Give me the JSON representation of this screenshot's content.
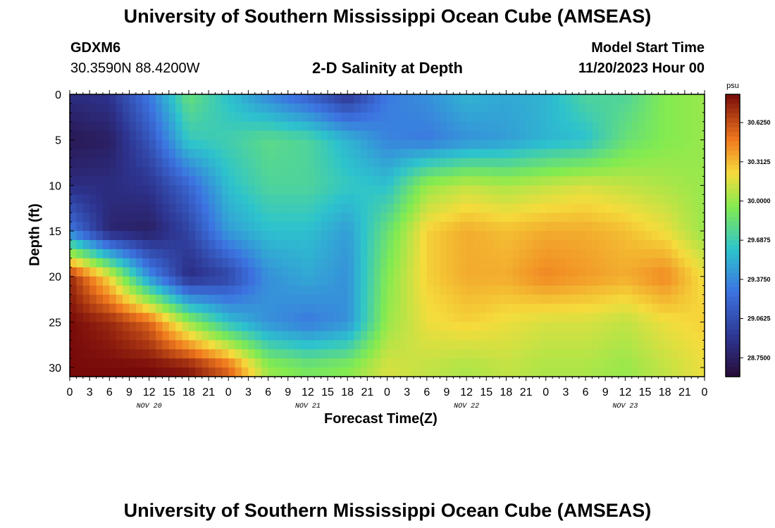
{
  "titles": {
    "main": "University of Southern Mississippi Ocean Cube (AMSEAS)",
    "repeat": "University of Southern Mississippi Ocean Cube (AMSEAS)"
  },
  "station": {
    "id": "GDXM6",
    "location": "30.3590N  88.4200W"
  },
  "model": {
    "label": "Model Start Time",
    "start": "11/20/2023 Hour 00"
  },
  "chart_data": {
    "type": "heatmap",
    "title": "2-D Salinity at Depth",
    "xlabel": "Forecast Time(Z)",
    "ylabel": "Depth (ft)",
    "ylim": [
      0,
      31
    ],
    "y_ticks": [
      0,
      5,
      10,
      15,
      20,
      25,
      30
    ],
    "x_ticks": [
      "0",
      "3",
      "6",
      "9",
      "12",
      "15",
      "18",
      "21",
      "0",
      "3",
      "6",
      "9",
      "12",
      "15",
      "18",
      "21",
      "0",
      "3",
      "6",
      "9",
      "12",
      "15",
      "18",
      "21",
      "0",
      "3",
      "6",
      "9",
      "12",
      "15",
      "18",
      "21",
      "0"
    ],
    "x_hours_range": [
      0,
      96
    ],
    "day_labels": [
      "NOV 20",
      "NOV 21",
      "NOV 22",
      "NOV 23"
    ],
    "colorbar": {
      "unit": "psu",
      "range": [
        28.6,
        30.85
      ],
      "tick_labels": [
        "30.6250",
        "30.3125",
        "30.0000",
        "29.6875",
        "29.3750",
        "29.0625",
        "28.7500"
      ],
      "tick_values": [
        30.625,
        30.3125,
        30.0,
        29.6875,
        29.375,
        29.0625,
        28.75
      ]
    },
    "series": [
      {
        "name": "0 ft",
        "hours": [
          0,
          6,
          12,
          18,
          24,
          30,
          36,
          42,
          48,
          54,
          60,
          66,
          72,
          78,
          84,
          90,
          96
        ],
        "values": [
          28.85,
          28.9,
          29.3,
          29.85,
          29.6,
          29.35,
          29.15,
          28.9,
          29.3,
          29.4,
          29.55,
          29.5,
          29.55,
          29.75,
          29.75,
          29.95,
          30.0
        ]
      },
      {
        "name": "5 ft",
        "hours": [
          0,
          6,
          12,
          18,
          24,
          30,
          36,
          42,
          48,
          54,
          60,
          66,
          72,
          78,
          84,
          90,
          96
        ],
        "values": [
          28.7,
          28.75,
          29.1,
          29.65,
          29.7,
          29.8,
          29.75,
          29.55,
          29.35,
          29.3,
          29.4,
          29.45,
          29.55,
          29.6,
          29.85,
          29.95,
          30.0
        ]
      },
      {
        "name": "10 ft",
        "hours": [
          0,
          6,
          12,
          18,
          24,
          30,
          36,
          42,
          48,
          54,
          60,
          66,
          72,
          78,
          84,
          90,
          96
        ],
        "values": [
          28.85,
          28.85,
          28.9,
          29.2,
          29.6,
          29.75,
          29.75,
          29.65,
          29.6,
          30.0,
          30.1,
          30.05,
          30.1,
          30.15,
          30.1,
          30.05,
          30.0
        ]
      },
      {
        "name": "15 ft",
        "hours": [
          0,
          6,
          12,
          18,
          24,
          30,
          36,
          42,
          48,
          54,
          60,
          66,
          72,
          78,
          84,
          90,
          96
        ],
        "values": [
          29.3,
          28.8,
          28.75,
          29.0,
          29.45,
          29.6,
          29.6,
          29.45,
          29.85,
          30.25,
          30.35,
          30.3,
          30.35,
          30.35,
          30.3,
          30.2,
          30.0
        ]
      },
      {
        "name": "20 ft",
        "hours": [
          0,
          6,
          12,
          18,
          24,
          30,
          36,
          42,
          48,
          54,
          60,
          66,
          72,
          78,
          84,
          90,
          96
        ],
        "values": [
          30.75,
          30.2,
          29.4,
          28.85,
          29.0,
          29.4,
          29.5,
          29.4,
          29.95,
          30.25,
          30.35,
          30.35,
          30.45,
          30.4,
          30.35,
          30.45,
          30.2
        ]
      },
      {
        "name": "25 ft",
        "hours": [
          0,
          6,
          12,
          18,
          24,
          30,
          36,
          42,
          48,
          54,
          60,
          66,
          72,
          78,
          84,
          90,
          96
        ],
        "values": [
          30.85,
          30.75,
          30.55,
          30.0,
          29.6,
          29.4,
          29.3,
          29.4,
          30.0,
          30.2,
          30.25,
          30.2,
          30.15,
          30.15,
          30.1,
          30.2,
          30.25
        ]
      },
      {
        "name": "30 ft",
        "hours": [
          0,
          6,
          12,
          18,
          24,
          30,
          36,
          42,
          48,
          54,
          60,
          66,
          72,
          78,
          84,
          90,
          96
        ],
        "values": [
          30.85,
          30.85,
          30.85,
          30.8,
          30.55,
          30.0,
          29.9,
          29.95,
          30.15,
          30.1,
          30.05,
          30.1,
          30.05,
          30.05,
          30.0,
          30.1,
          30.2
        ]
      }
    ]
  }
}
